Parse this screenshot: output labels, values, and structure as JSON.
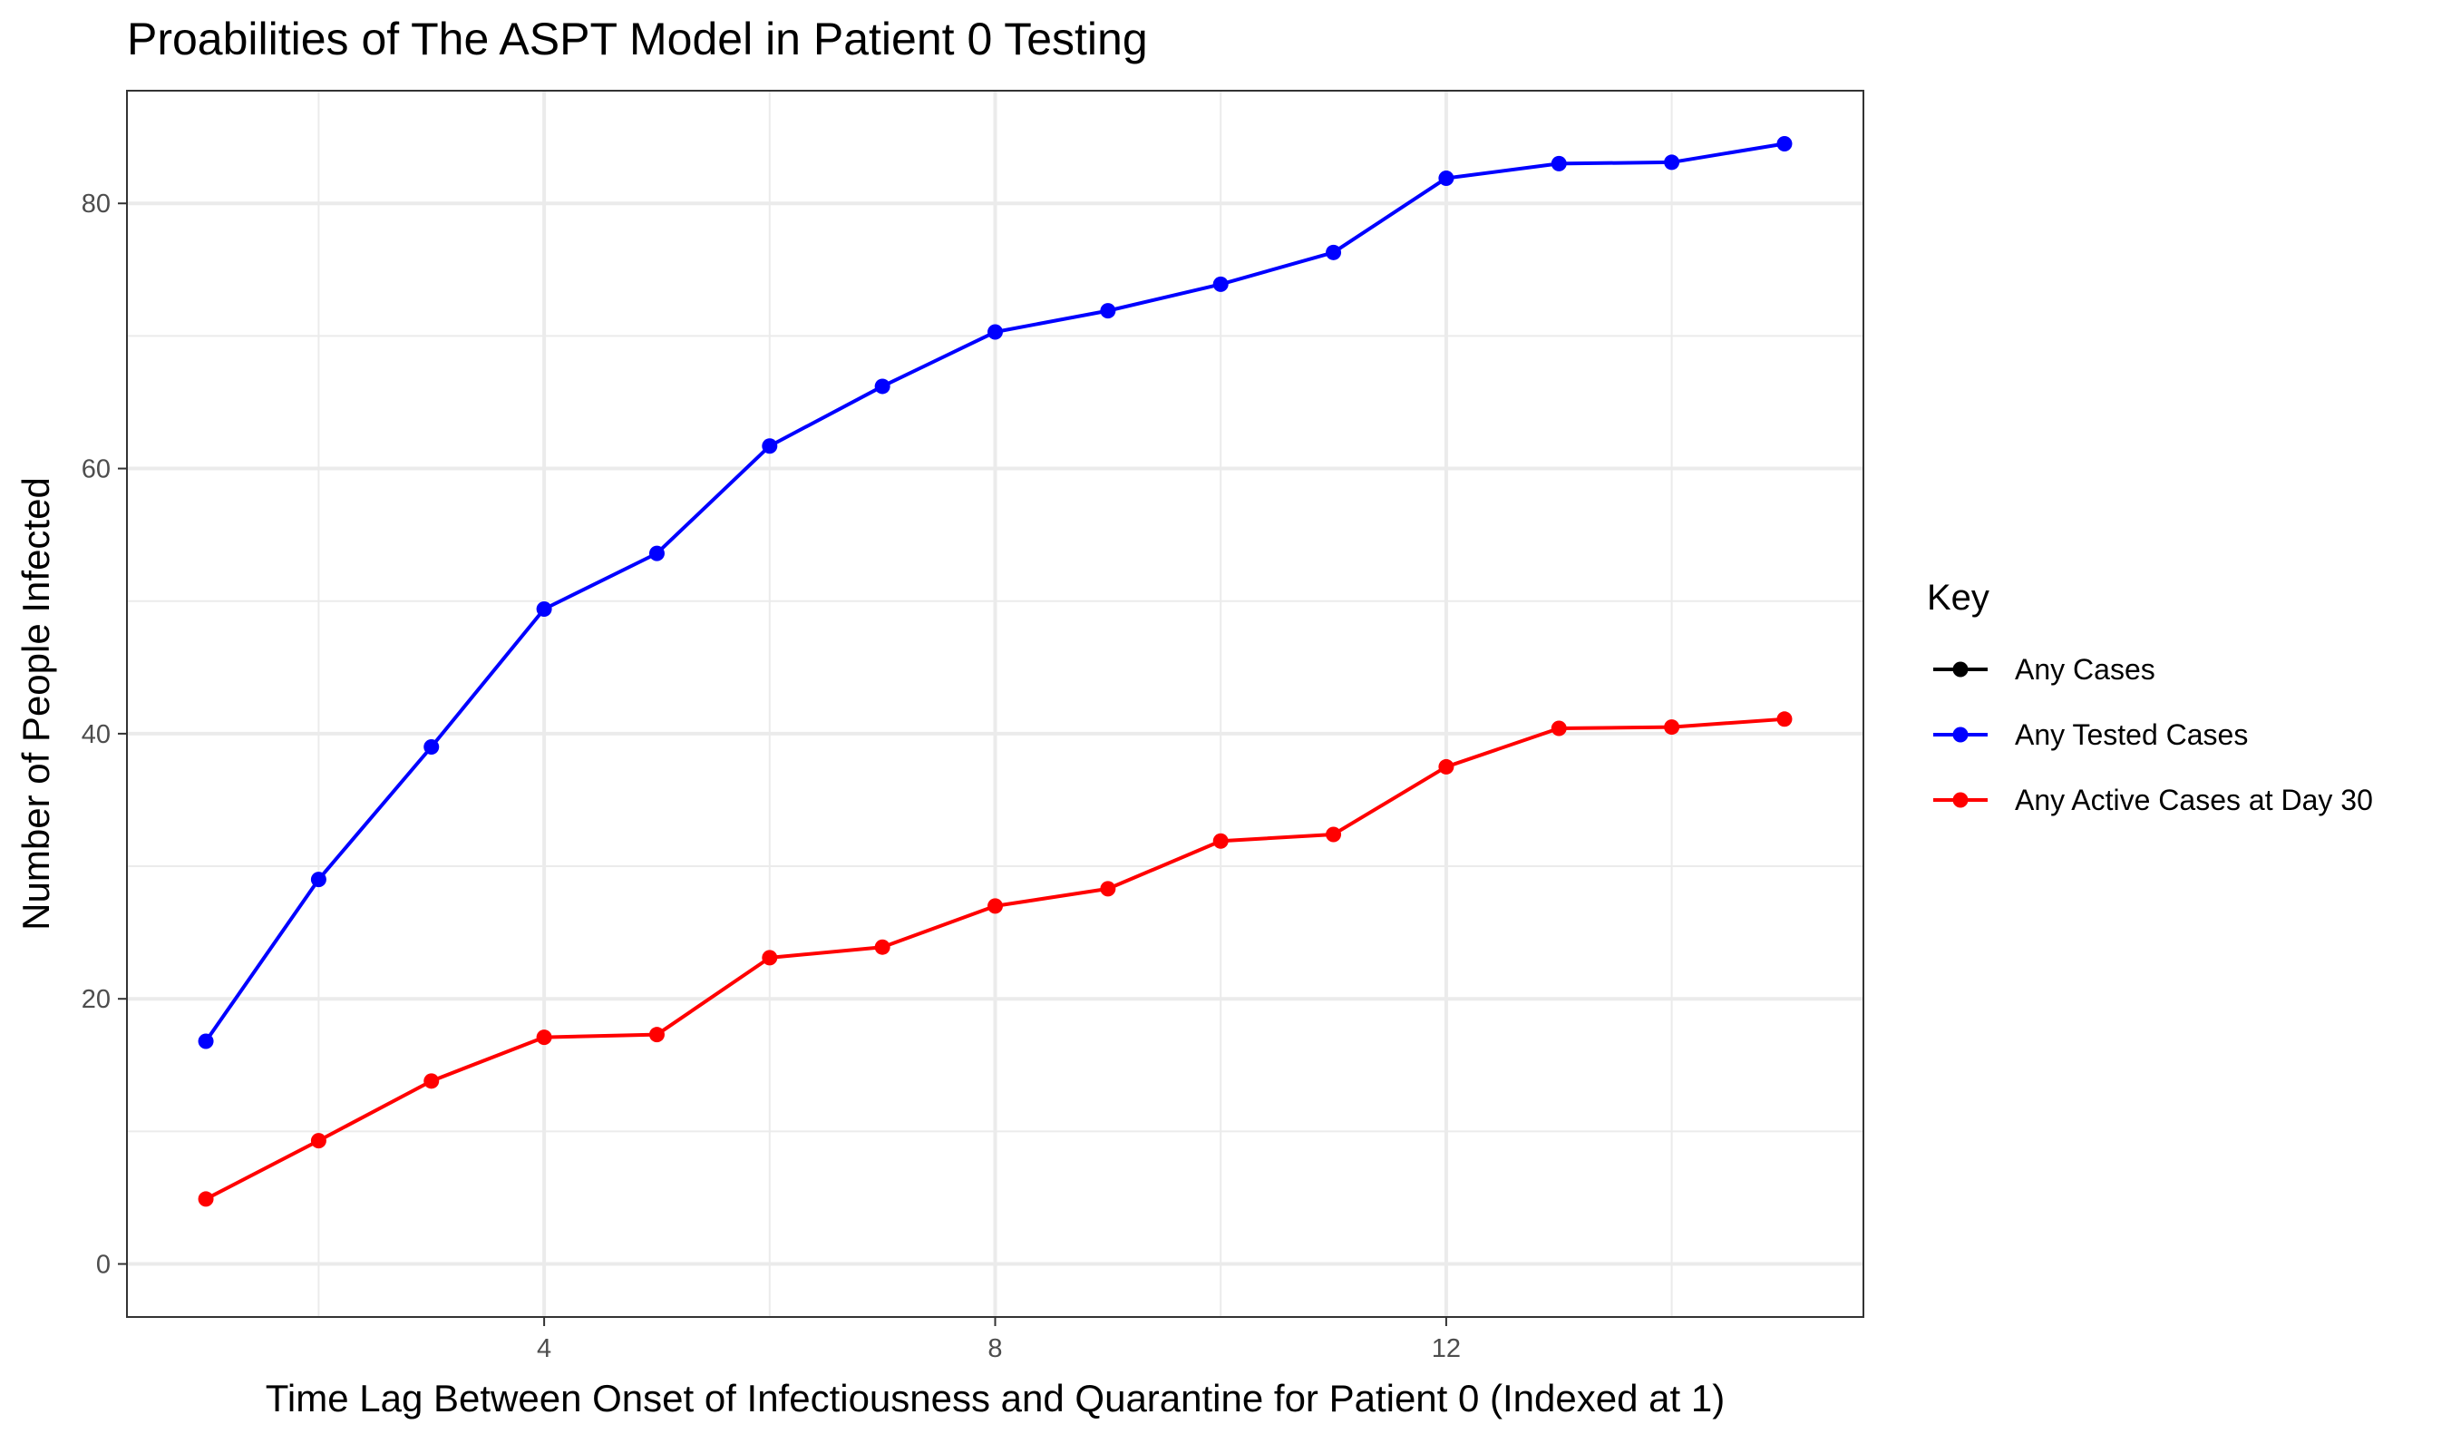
{
  "chart_data": {
    "type": "line",
    "title": "Proabilities of The ASPT Model in Patient 0 Testing",
    "xlabel": "Time Lag Between Onset of Infectiousness and Quarantine for Patient 0 (Indexed at 1)",
    "ylabel": "Number of People Infected",
    "xlim": [
      0.3,
      15.7
    ],
    "ylim": [
      -4,
      88.5
    ],
    "x_ticks": [
      4,
      8,
      12
    ],
    "y_ticks": [
      0,
      20,
      40,
      60,
      80
    ],
    "x_minor": [
      2,
      6,
      10,
      14
    ],
    "y_minor": [
      10,
      30,
      50,
      70
    ],
    "grid": true,
    "x": [
      1,
      2,
      3,
      4,
      5,
      6,
      7,
      8,
      9,
      10,
      11,
      12,
      13,
      14,
      15
    ],
    "legend": {
      "title": "Key",
      "placement": "right",
      "entries": [
        {
          "label": "Any Cases",
          "color": "#000000"
        },
        {
          "label": "Any Tested Cases",
          "color": "#0000ff"
        },
        {
          "label": "Any Active Cases at Day 30",
          "color": "#ff0000"
        }
      ]
    },
    "series": [
      {
        "name": "Any Tested Cases",
        "color": "#0000ff",
        "values": [
          16.8,
          29.0,
          39.0,
          49.4,
          53.6,
          61.7,
          66.2,
          70.3,
          71.9,
          73.9,
          76.3,
          81.9,
          83.0,
          83.1,
          84.5
        ]
      },
      {
        "name": "Any Active Cases at Day 30",
        "color": "#ff0000",
        "values": [
          4.9,
          9.3,
          13.8,
          17.1,
          17.3,
          23.1,
          23.9,
          27.0,
          28.3,
          31.9,
          32.4,
          37.5,
          40.4,
          40.5,
          41.1
        ]
      }
    ]
  }
}
